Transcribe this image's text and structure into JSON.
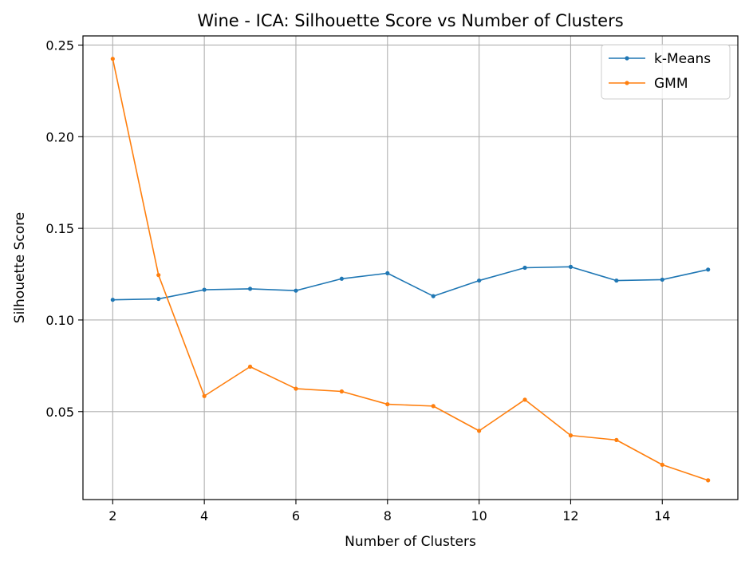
{
  "chart_data": {
    "type": "line",
    "title": "Wine - ICA: Silhouette Score vs Number of Clusters",
    "xlabel": "Number of Clusters",
    "ylabel": "Silhouette Score",
    "x": [
      2,
      3,
      4,
      5,
      6,
      7,
      8,
      9,
      10,
      11,
      12,
      13,
      14,
      15
    ],
    "xlim": [
      1.35,
      15.65
    ],
    "ylim": [
      0.002,
      0.255
    ],
    "xticks": [
      2,
      4,
      6,
      8,
      10,
      12,
      14
    ],
    "yticks": [
      0.05,
      0.1,
      0.15,
      0.2,
      0.25
    ],
    "xtick_labels": [
      "2",
      "4",
      "6",
      "8",
      "10",
      "12",
      "14"
    ],
    "ytick_labels": [
      "0.05",
      "0.10",
      "0.15",
      "0.20",
      "0.25"
    ],
    "grid": true,
    "legend_position": "top-right",
    "series": [
      {
        "name": "k-Means",
        "color": "#1f77b4",
        "marker": "circle",
        "values": [
          0.111,
          0.1115,
          0.1165,
          0.117,
          0.116,
          0.1225,
          0.1255,
          0.113,
          0.1215,
          0.1285,
          0.129,
          0.1215,
          0.122,
          0.1275
        ]
      },
      {
        "name": "GMM",
        "color": "#ff7f0e",
        "marker": "circle",
        "values": [
          0.2425,
          0.1245,
          0.0585,
          0.0745,
          0.0625,
          0.061,
          0.054,
          0.053,
          0.0395,
          0.0565,
          0.037,
          0.0345,
          0.021,
          0.0125
        ]
      }
    ]
  }
}
